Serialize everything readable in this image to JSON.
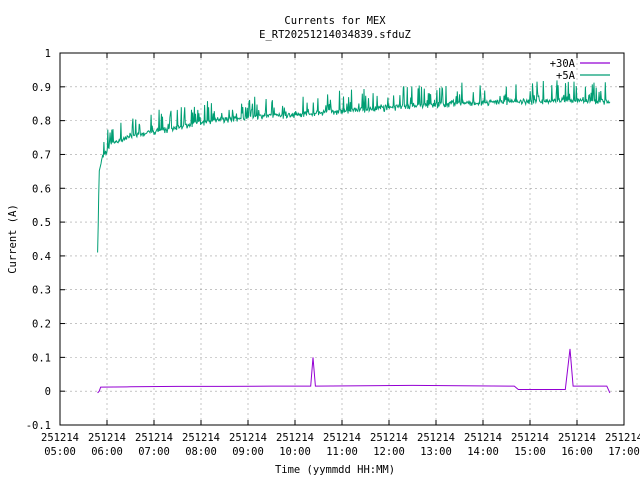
{
  "chart_data": {
    "type": "line",
    "title": "Currents for MEX",
    "subtitle": "E_RT20251214034839.sfduZ",
    "xlabel": "Time (yymmdd HH:MM)",
    "ylabel": "Current (A)",
    "xlim": [
      "251214 05:00",
      "251214 17:00"
    ],
    "ylim": [
      -0.1,
      1.0
    ],
    "grid": true,
    "legend_position": "top-right",
    "x_ticks": [
      {
        "date": "251214",
        "time": "05:00"
      },
      {
        "date": "251214",
        "time": "06:00"
      },
      {
        "date": "251214",
        "time": "07:00"
      },
      {
        "date": "251214",
        "time": "08:00"
      },
      {
        "date": "251214",
        "time": "09:00"
      },
      {
        "date": "251214",
        "time": "10:00"
      },
      {
        "date": "251214",
        "time": "11:00"
      },
      {
        "date": "251214",
        "time": "12:00"
      },
      {
        "date": "251214",
        "time": "13:00"
      },
      {
        "date": "251214",
        "time": "14:00"
      },
      {
        "date": "251214",
        "time": "15:00"
      },
      {
        "date": "251214",
        "time": "16:00"
      },
      {
        "date": "251214",
        "time": "17:00"
      }
    ],
    "y_ticks": [
      "-0.1",
      "0",
      "0.1",
      "0.2",
      "0.3",
      "0.4",
      "0.5",
      "0.6",
      "0.7",
      "0.8",
      "0.9",
      "1"
    ],
    "series": [
      {
        "name": "+30A",
        "color": "#9400d3",
        "points": [
          [
            "251214 05:48",
            -0.005
          ],
          [
            "251214 05:50",
            0.0
          ],
          [
            "251214 05:52",
            0.012
          ],
          [
            "251214 06:30",
            0.013
          ],
          [
            "251214 07:30",
            0.014
          ],
          [
            "251214 08:30",
            0.014
          ],
          [
            "251214 09:30",
            0.015
          ],
          [
            "251214 10:20",
            0.015
          ],
          [
            "251214 10:23",
            0.1
          ],
          [
            "251214 10:26",
            0.015
          ],
          [
            "251214 11:30",
            0.016
          ],
          [
            "251214 12:30",
            0.017
          ],
          [
            "251214 13:30",
            0.016
          ],
          [
            "251214 14:40",
            0.015
          ],
          [
            "251214 14:45",
            0.005
          ],
          [
            "251214 15:45",
            0.005
          ],
          [
            "251214 15:51",
            0.125
          ],
          [
            "251214 15:55",
            0.015
          ],
          [
            "251214 16:38",
            0.015
          ],
          [
            "251214 16:42",
            -0.005
          ]
        ]
      },
      {
        "name": "+5A",
        "color": "#009e73",
        "points": [
          [
            "251214 05:48",
            0.41
          ],
          [
            "251214 05:49",
            0.52
          ],
          [
            "251214 05:50",
            0.65
          ],
          [
            "251214 05:55",
            0.7
          ],
          [
            "251214 06:05",
            0.73
          ],
          [
            "251214 06:30",
            0.755
          ],
          [
            "251214 07:00",
            0.77
          ],
          [
            "251214 07:30",
            0.78
          ],
          [
            "251214 08:00",
            0.795
          ],
          [
            "251214 08:30",
            0.805
          ],
          [
            "251214 09:00",
            0.81
          ],
          [
            "251214 09:30",
            0.815
          ],
          [
            "251214 10:00",
            0.82
          ],
          [
            "251214 10:30",
            0.825
          ],
          [
            "251214 11:00",
            0.83
          ],
          [
            "251214 11:30",
            0.835
          ],
          [
            "251214 12:00",
            0.84
          ],
          [
            "251214 12:30",
            0.845
          ],
          [
            "251214 13:00",
            0.85
          ],
          [
            "251214 13:30",
            0.853
          ],
          [
            "251214 14:00",
            0.855
          ],
          [
            "251214 14:30",
            0.857
          ],
          [
            "251214 15:00",
            0.858
          ],
          [
            "251214 15:30",
            0.86
          ],
          [
            "251214 16:00",
            0.86
          ],
          [
            "251214 16:30",
            0.86
          ],
          [
            "251214 16:42",
            0.855
          ]
        ]
      }
    ]
  }
}
